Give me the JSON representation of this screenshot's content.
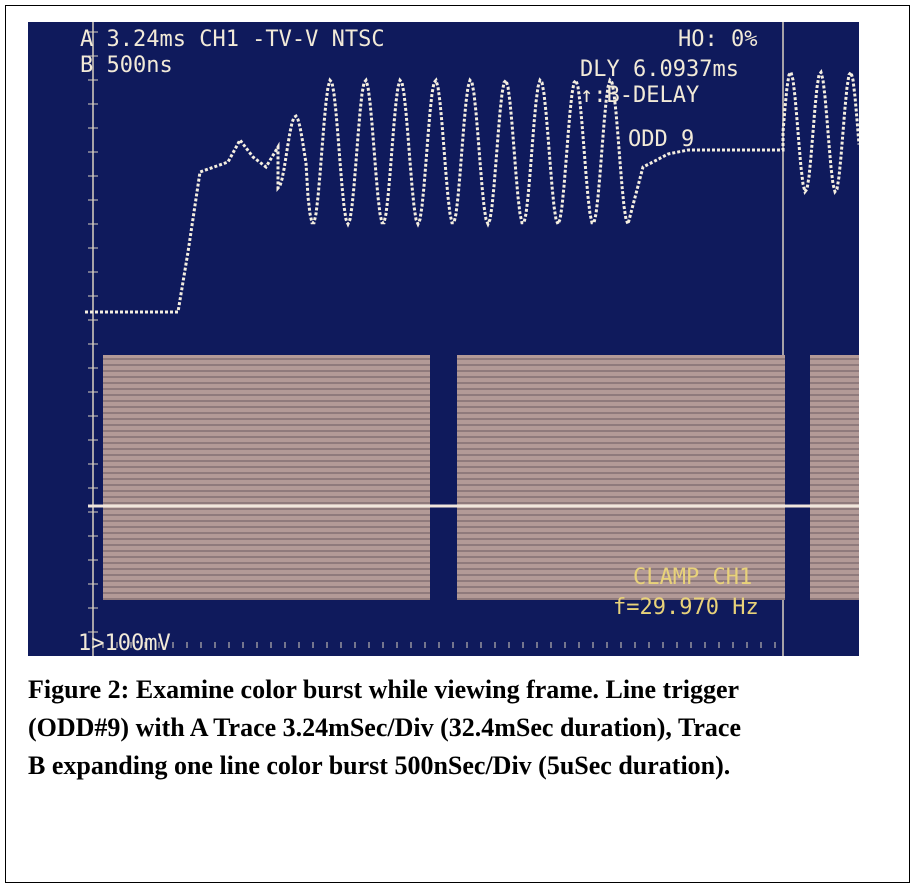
{
  "screen": {
    "readouts": {
      "a_trace": "A 3.24ms CH1 -TV-V NTSC",
      "b_trace": "B 500ns",
      "holdoff": "HO:  0%",
      "delay": "DLY 6.0937ms",
      "trigger_mode": "↑:B-DELAY",
      "field": "ODD  9",
      "clamp": "CLAMP CH1",
      "frequency": "f=29.970 Hz",
      "channel_scale": "1>100mV"
    }
  },
  "caption": {
    "lines": [
      "Figure 2: Examine color burst while viewing frame. Line trigger",
      "(ODD#9) with A Trace 3.24mSec/Div (32.4mSec duration), Trace",
      "B expanding one line color burst 500nSec/Div (5uSec duration)."
    ]
  }
}
